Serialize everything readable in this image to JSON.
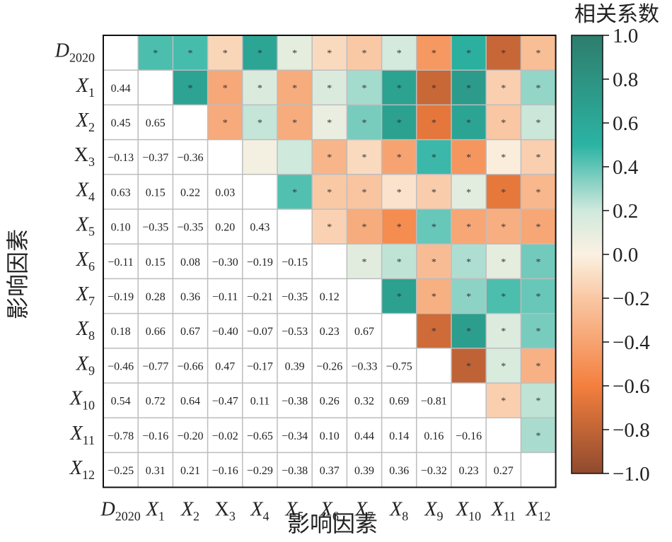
{
  "chart_data": {
    "type": "heatmap",
    "xlabel": "影响因素",
    "ylabel": "影响因素",
    "colorbar": {
      "title": "相关系数",
      "range": [
        -1.0,
        1.0
      ],
      "ticks": [
        "1.0",
        "0.8",
        "0.6",
        "0.4",
        "0.2",
        "0.0",
        "−0.2",
        "−0.4",
        "−0.6",
        "−0.8",
        "−1.0"
      ],
      "tick_values": [
        1.0,
        0.8,
        0.6,
        0.4,
        0.2,
        0.0,
        -0.2,
        -0.4,
        -0.6,
        -0.8,
        -1.0
      ],
      "colors": {
        "pos_strong": "#2e7d6c",
        "pos_mid": "#2bb3a3",
        "pos_weak": "#cfe9dc",
        "zero": "#fbf1e2",
        "neg_weak": "#f9c7a3",
        "neg_mid": "#f47f3e",
        "neg_strong": "#8f4a2e"
      }
    },
    "significance_marker": "*",
    "categories": [
      {
        "base": "D",
        "sub": "2020",
        "italic": true
      },
      {
        "base": "X",
        "sub": "1",
        "italic": true
      },
      {
        "base": "X",
        "sub": "2",
        "italic": true
      },
      {
        "base": "X",
        "sub": "3",
        "italic": false
      },
      {
        "base": "X",
        "sub": "4",
        "italic": true
      },
      {
        "base": "X",
        "sub": "5",
        "italic": true
      },
      {
        "base": "X",
        "sub": "6",
        "italic": true
      },
      {
        "base": "X",
        "sub": "7",
        "italic": true
      },
      {
        "base": "X",
        "sub": "8",
        "italic": true
      },
      {
        "base": "X",
        "sub": "9",
        "italic": true
      },
      {
        "base": "X",
        "sub": "10",
        "italic": true
      },
      {
        "base": "X",
        "sub": "11",
        "italic": true
      },
      {
        "base": "X",
        "sub": "12",
        "italic": true
      }
    ],
    "lower_triangle_labels": [
      [],
      [
        "0.44"
      ],
      [
        "0.45",
        "0.65"
      ],
      [
        "−0.13",
        "−0.37",
        "−0.36"
      ],
      [
        "0.63",
        "0.15",
        "0.22",
        "0.03"
      ],
      [
        "0.10",
        "−0.35",
        "−0.35",
        "0.20",
        "0.43"
      ],
      [
        "−0.11",
        "0.15",
        "0.08",
        "−0.30",
        "−0.19",
        "−0.15"
      ],
      [
        "−0.19",
        "0.28",
        "0.36",
        "−0.11",
        "−0.21",
        "−0.35",
        "0.12"
      ],
      [
        "0.18",
        "0.66",
        "0.67",
        "−0.40",
        "−0.07",
        "−0.53",
        "0.23",
        "0.67"
      ],
      [
        "−0.46",
        "−0.77",
        "−0.66",
        "0.47",
        "−0.17",
        "0.39",
        "−0.26",
        "−0.33",
        "−0.75"
      ],
      [
        "0.54",
        "0.72",
        "0.64",
        "−0.47",
        "0.11",
        "−0.38",
        "0.26",
        "0.32",
        "0.69",
        "−0.81"
      ],
      [
        "−0.78",
        "−0.16",
        "−0.20",
        "−0.02",
        "−0.65",
        "−0.34",
        "0.10",
        "0.44",
        "0.14",
        "0.16",
        "−0.16"
      ],
      [
        "−0.25",
        "0.31",
        "0.21",
        "−0.16",
        "−0.29",
        "−0.38",
        "0.37",
        "0.39",
        "0.36",
        "−0.32",
        "0.23",
        "0.27"
      ]
    ],
    "upper_triangle_values": [
      [
        null,
        0.44,
        0.45,
        -0.13,
        0.63,
        0.1,
        -0.11,
        -0.19,
        0.18,
        -0.46,
        0.54,
        -0.78,
        -0.25
      ],
      [
        null,
        null,
        0.65,
        -0.37,
        0.15,
        -0.35,
        0.15,
        0.28,
        0.66,
        -0.77,
        0.72,
        -0.16,
        0.31
      ],
      [
        null,
        null,
        null,
        -0.36,
        0.22,
        -0.35,
        0.08,
        0.36,
        0.67,
        -0.66,
        0.64,
        -0.2,
        0.21
      ],
      [
        null,
        null,
        null,
        null,
        0.03,
        0.2,
        -0.3,
        -0.11,
        -0.4,
        0.47,
        -0.47,
        -0.02,
        -0.16
      ],
      [
        null,
        null,
        null,
        null,
        null,
        0.43,
        -0.19,
        -0.21,
        -0.07,
        -0.17,
        0.11,
        -0.65,
        -0.29
      ],
      [
        null,
        null,
        null,
        null,
        null,
        null,
        -0.15,
        -0.35,
        -0.53,
        0.39,
        -0.38,
        -0.34,
        -0.38
      ],
      [
        null,
        null,
        null,
        null,
        null,
        null,
        null,
        0.12,
        0.23,
        -0.26,
        0.26,
        0.1,
        0.37
      ],
      [
        null,
        null,
        null,
        null,
        null,
        null,
        null,
        null,
        0.67,
        -0.33,
        0.32,
        0.44,
        0.39
      ],
      [
        null,
        null,
        null,
        null,
        null,
        null,
        null,
        null,
        null,
        -0.75,
        0.69,
        0.14,
        0.36
      ],
      [
        null,
        null,
        null,
        null,
        null,
        null,
        null,
        null,
        null,
        null,
        -0.81,
        0.16,
        -0.32
      ],
      [
        null,
        null,
        null,
        null,
        null,
        null,
        null,
        null,
        null,
        null,
        null,
        -0.16,
        0.23
      ],
      [
        null,
        null,
        null,
        null,
        null,
        null,
        null,
        null,
        null,
        null,
        null,
        null,
        0.27
      ],
      [
        null,
        null,
        null,
        null,
        null,
        null,
        null,
        null,
        null,
        null,
        null,
        null,
        null
      ]
    ],
    "upper_triangle_significant": [
      [
        false,
        true,
        true,
        true,
        true,
        true,
        true,
        true,
        true,
        true,
        true,
        true,
        true
      ],
      [
        false,
        false,
        true,
        true,
        true,
        true,
        true,
        true,
        true,
        true,
        true,
        true,
        true
      ],
      [
        false,
        false,
        false,
        true,
        true,
        true,
        true,
        true,
        true,
        true,
        true,
        true,
        true
      ],
      [
        false,
        false,
        false,
        false,
        false,
        false,
        true,
        true,
        true,
        true,
        true,
        true,
        true
      ],
      [
        false,
        false,
        false,
        false,
        false,
        true,
        true,
        true,
        true,
        true,
        true,
        true,
        true
      ],
      [
        false,
        false,
        false,
        false,
        false,
        false,
        true,
        true,
        true,
        true,
        true,
        true,
        true
      ],
      [
        false,
        false,
        false,
        false,
        false,
        false,
        false,
        true,
        true,
        true,
        true,
        true,
        true
      ],
      [
        false,
        false,
        false,
        false,
        false,
        false,
        false,
        false,
        true,
        true,
        true,
        true,
        true
      ],
      [
        false,
        false,
        false,
        false,
        false,
        false,
        false,
        false,
        false,
        true,
        true,
        true,
        true
      ],
      [
        false,
        false,
        false,
        false,
        false,
        false,
        false,
        false,
        false,
        false,
        true,
        true,
        true
      ],
      [
        false,
        false,
        false,
        false,
        false,
        false,
        false,
        false,
        false,
        false,
        false,
        true,
        true
      ],
      [
        false,
        false,
        false,
        false,
        false,
        false,
        false,
        false,
        false,
        false,
        false,
        false,
        true
      ],
      [
        false,
        false,
        false,
        false,
        false,
        false,
        false,
        false,
        false,
        false,
        false,
        false,
        false
      ]
    ]
  }
}
